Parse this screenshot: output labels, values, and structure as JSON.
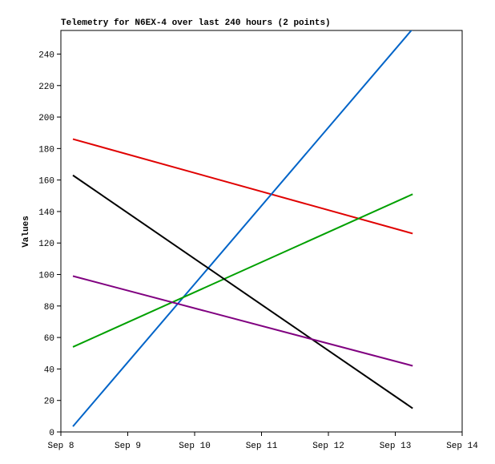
{
  "chart_data": {
    "type": "line",
    "title": "Telemetry for N6EX-4 over last 240 hours (2 points)",
    "y_label": "Values",
    "x": [
      8.18,
      13.26
    ],
    "xlim": [
      8,
      14
    ],
    "xticks": [
      {
        "value": 8,
        "label": "Sep 8"
      },
      {
        "value": 9,
        "label": "Sep 9"
      },
      {
        "value": 10,
        "label": "Sep 10"
      },
      {
        "value": 11,
        "label": "Sep 11"
      },
      {
        "value": 12,
        "label": "Sep 12"
      },
      {
        "value": 13,
        "label": "Sep 13"
      },
      {
        "value": 14,
        "label": "Sep 14"
      }
    ],
    "ylim": [
      0,
      255
    ],
    "yticks": [
      0,
      20,
      40,
      60,
      80,
      100,
      120,
      140,
      160,
      180,
      200,
      220,
      240
    ],
    "series": [
      {
        "color": "#e00000",
        "values": [
          186,
          126
        ]
      },
      {
        "color": "#0064c8",
        "values": [
          3.5,
          256
        ]
      },
      {
        "color": "#00a000",
        "values": [
          54,
          151
        ]
      },
      {
        "color": "#000000",
        "values": [
          163,
          15
        ]
      },
      {
        "color": "#800080",
        "values": [
          99,
          42
        ]
      }
    ]
  }
}
